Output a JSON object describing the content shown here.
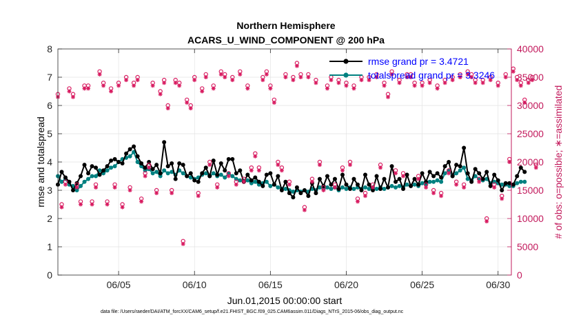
{
  "chart_data": {
    "type": "line",
    "title_line1": "Northern Hemisphere",
    "title_line2": "ACARS_U_WIND_COMPONENT @ 200 hPa",
    "xlabel": "Jun.01,2015 00:00:00 start",
    "ylabel_left": "rmse and totalspread",
    "ylabel_right": "# of obs: o=possible; ∗=assimilated",
    "x_ticks": [
      {
        "day": 5,
        "label": "06/05"
      },
      {
        "day": 10,
        "label": "06/10"
      },
      {
        "day": 15,
        "label": "06/15"
      },
      {
        "day": 20,
        "label": "06/20"
      },
      {
        "day": 25,
        "label": "06/25"
      },
      {
        "day": 30,
        "label": "06/30"
      }
    ],
    "xlim": [
      1.0,
      30.875
    ],
    "ylim_left": [
      0,
      8
    ],
    "yticks_left": [
      "0",
      "1",
      "2",
      "3",
      "4",
      "5",
      "6",
      "7",
      "8"
    ],
    "ylim_right": [
      0,
      40000
    ],
    "yticks_right": [
      "0",
      "5000",
      "10000",
      "15000",
      "20000",
      "25000",
      "30000",
      "35000",
      "40000"
    ],
    "legend": [
      {
        "label": "rmse grand pr = 3.4721",
        "color": "#000000"
      },
      {
        "label": "totalspread grand pr = 3.3246",
        "color": "#008080"
      }
    ],
    "colors": {
      "rmse": "#000000",
      "spread": "#008080",
      "obs": "#d81b60",
      "right_axis": "#c2185b",
      "legend_text": "#0000ff"
    },
    "series": [
      {
        "name": "rmse",
        "axis": "left",
        "values": [
          3.2,
          3.65,
          3.45,
          3.3,
          3.0,
          3.25,
          3.5,
          3.9,
          3.6,
          3.85,
          3.8,
          3.55,
          3.7,
          3.85,
          4.05,
          4.1,
          4.0,
          3.95,
          4.3,
          4.45,
          4.55,
          4.2,
          3.95,
          3.8,
          4.0,
          3.75,
          3.9,
          3.6,
          4.7,
          3.85,
          3.95,
          3.4,
          3.95,
          3.9,
          3.5,
          3.6,
          3.35,
          3.3,
          3.6,
          3.8,
          3.5,
          4.05,
          3.55,
          3.95,
          3.7,
          4.1,
          4.1,
          3.6,
          3.7,
          3.3,
          3.55,
          3.35,
          3.45,
          3.3,
          3.15,
          3.55,
          3.6,
          3.2,
          3.5,
          3.0,
          3.3,
          2.9,
          2.75,
          3.1,
          2.9,
          3.0,
          2.8,
          3.25,
          2.9,
          3.4,
          3.15,
          3.5,
          3.2,
          3.4,
          3.05,
          3.55,
          3.2,
          3.05,
          3.4,
          3.2,
          3.0,
          3.55,
          3.2,
          3.0,
          3.5,
          3.05,
          3.4,
          3.1,
          3.85,
          3.3,
          3.4,
          3.05,
          3.55,
          3.15,
          3.4,
          3.2,
          3.6,
          3.3,
          3.65,
          3.5,
          3.6,
          3.45,
          3.85,
          4.0,
          3.5,
          3.9,
          3.85,
          4.5,
          3.6,
          3.3,
          3.75,
          3.6,
          3.4,
          3.65,
          3.15,
          3.55,
          3.35,
          3.0,
          3.25,
          3.25,
          3.2,
          3.5,
          3.8,
          3.65
        ]
      },
      {
        "name": "totalspread",
        "axis": "left",
        "values": [
          3.5,
          3.3,
          3.4,
          3.2,
          3.15,
          3.0,
          3.15,
          3.3,
          3.4,
          3.5,
          3.5,
          3.7,
          3.6,
          3.7,
          3.8,
          3.85,
          4.0,
          4.1,
          4.15,
          4.2,
          4.35,
          4.0,
          3.85,
          3.7,
          3.75,
          3.6,
          3.65,
          3.5,
          3.7,
          3.6,
          3.65,
          3.55,
          3.7,
          3.6,
          3.5,
          3.45,
          3.4,
          3.45,
          3.55,
          3.6,
          3.5,
          3.6,
          3.5,
          3.55,
          3.45,
          3.6,
          3.5,
          3.4,
          3.35,
          3.3,
          3.35,
          3.25,
          3.3,
          3.2,
          3.25,
          3.3,
          3.15,
          3.2,
          3.1,
          3.05,
          3.05,
          3.0,
          2.95,
          3.0,
          2.95,
          3.0,
          2.95,
          3.05,
          3.0,
          3.1,
          3.05,
          3.1,
          3.05,
          3.1,
          3.0,
          3.1,
          3.05,
          3.1,
          3.05,
          3.1,
          3.05,
          3.1,
          3.05,
          3.1,
          3.05,
          3.1,
          3.05,
          3.1,
          3.15,
          3.1,
          3.15,
          3.1,
          3.2,
          3.15,
          3.2,
          3.15,
          3.25,
          3.2,
          3.3,
          3.3,
          3.35,
          3.3,
          3.6,
          3.7,
          3.5,
          3.6,
          3.7,
          3.8,
          3.4,
          3.35,
          3.5,
          3.4,
          3.35,
          3.4,
          3.25,
          3.3,
          3.25,
          3.2,
          3.2,
          3.15,
          3.15,
          3.25,
          3.3,
          3.3
        ]
      },
      {
        "name": "obs possible",
        "axis": "right",
        "values": [
          32000,
          12500,
          16500,
          33000,
          32000,
          16000,
          13000,
          33500,
          33500,
          13000,
          16000,
          36000,
          34000,
          13000,
          33000,
          16000,
          34000,
          12500,
          35000,
          15500,
          34000,
          35000,
          13500,
          18000,
          19500,
          34000,
          15000,
          32500,
          34500,
          30000,
          15000,
          34500,
          34000,
          6000,
          31000,
          30000,
          35000,
          14500,
          33000,
          35500,
          20000,
          33500,
          16000,
          36000,
          35500,
          18000,
          35000,
          16500,
          36000,
          17000,
          33500,
          19000,
          21500,
          19000,
          35000,
          36000,
          33500,
          31000,
          20000,
          19000,
          35500,
          16500,
          35000,
          37500,
          35500,
          12000,
          35500,
          17000,
          34500,
          20000,
          15500,
          33500,
          35000,
          16000,
          34500,
          19000,
          34000,
          20000,
          33500,
          13500,
          35000,
          14500,
          35000,
          16000,
          35500,
          19500,
          34000,
          32000,
          36000,
          18500,
          34500,
          18000,
          35500,
          35500,
          34000,
          17500,
          34000,
          16000,
          34500,
          15000,
          33500,
          14500,
          34500,
          18500,
          35000,
          16500,
          35500,
          16000,
          36000,
          35500,
          34500,
          17000,
          34500,
          10000,
          35000,
          16000,
          34000,
          14000,
          35500,
          20500,
          36500,
          35000,
          34000,
          31000,
          34500,
          35000,
          19500
        ]
      },
      {
        "name": "obs assimilated",
        "axis": "right",
        "values": [
          31500,
          12000,
          16000,
          32500,
          31500,
          15500,
          12500,
          33000,
          33000,
          12500,
          15500,
          35500,
          33500,
          12500,
          32500,
          15500,
          33500,
          12000,
          34500,
          15000,
          33500,
          34500,
          13000,
          17500,
          19000,
          33500,
          14500,
          32000,
          34000,
          29500,
          14500,
          34000,
          33500,
          5500,
          30500,
          29500,
          34500,
          14000,
          32500,
          35000,
          19500,
          33000,
          15500,
          35500,
          35000,
          17500,
          34500,
          16000,
          35500,
          16500,
          33000,
          18500,
          21000,
          18500,
          34500,
          35500,
          33000,
          30500,
          19500,
          18500,
          35000,
          16000,
          34500,
          37000,
          35000,
          11500,
          35000,
          16500,
          34000,
          19500,
          15000,
          33000,
          34500,
          15500,
          34000,
          18500,
          33500,
          19500,
          33000,
          13000,
          34500,
          14000,
          34500,
          15500,
          35000,
          19000,
          33500,
          31500,
          35500,
          18000,
          34000,
          17500,
          35000,
          35000,
          33500,
          17000,
          33500,
          15500,
          34000,
          14500,
          33000,
          14000,
          34000,
          18000,
          34500,
          16000,
          35000,
          15500,
          35500,
          35000,
          34000,
          16500,
          34000,
          9500,
          34500,
          15500,
          33500,
          13500,
          35000,
          20000,
          36000,
          34500,
          33500,
          30500,
          34000,
          34500,
          19000
        ]
      }
    ]
  },
  "footer": "data file: /Users/raeder/DAI/ATM_forcXX/CAM6_setup/f.e21.FHIST_BGC.f09_025.CAM6assim.011/Diags_NTrS_2015-06/obs_diag_output.nc"
}
